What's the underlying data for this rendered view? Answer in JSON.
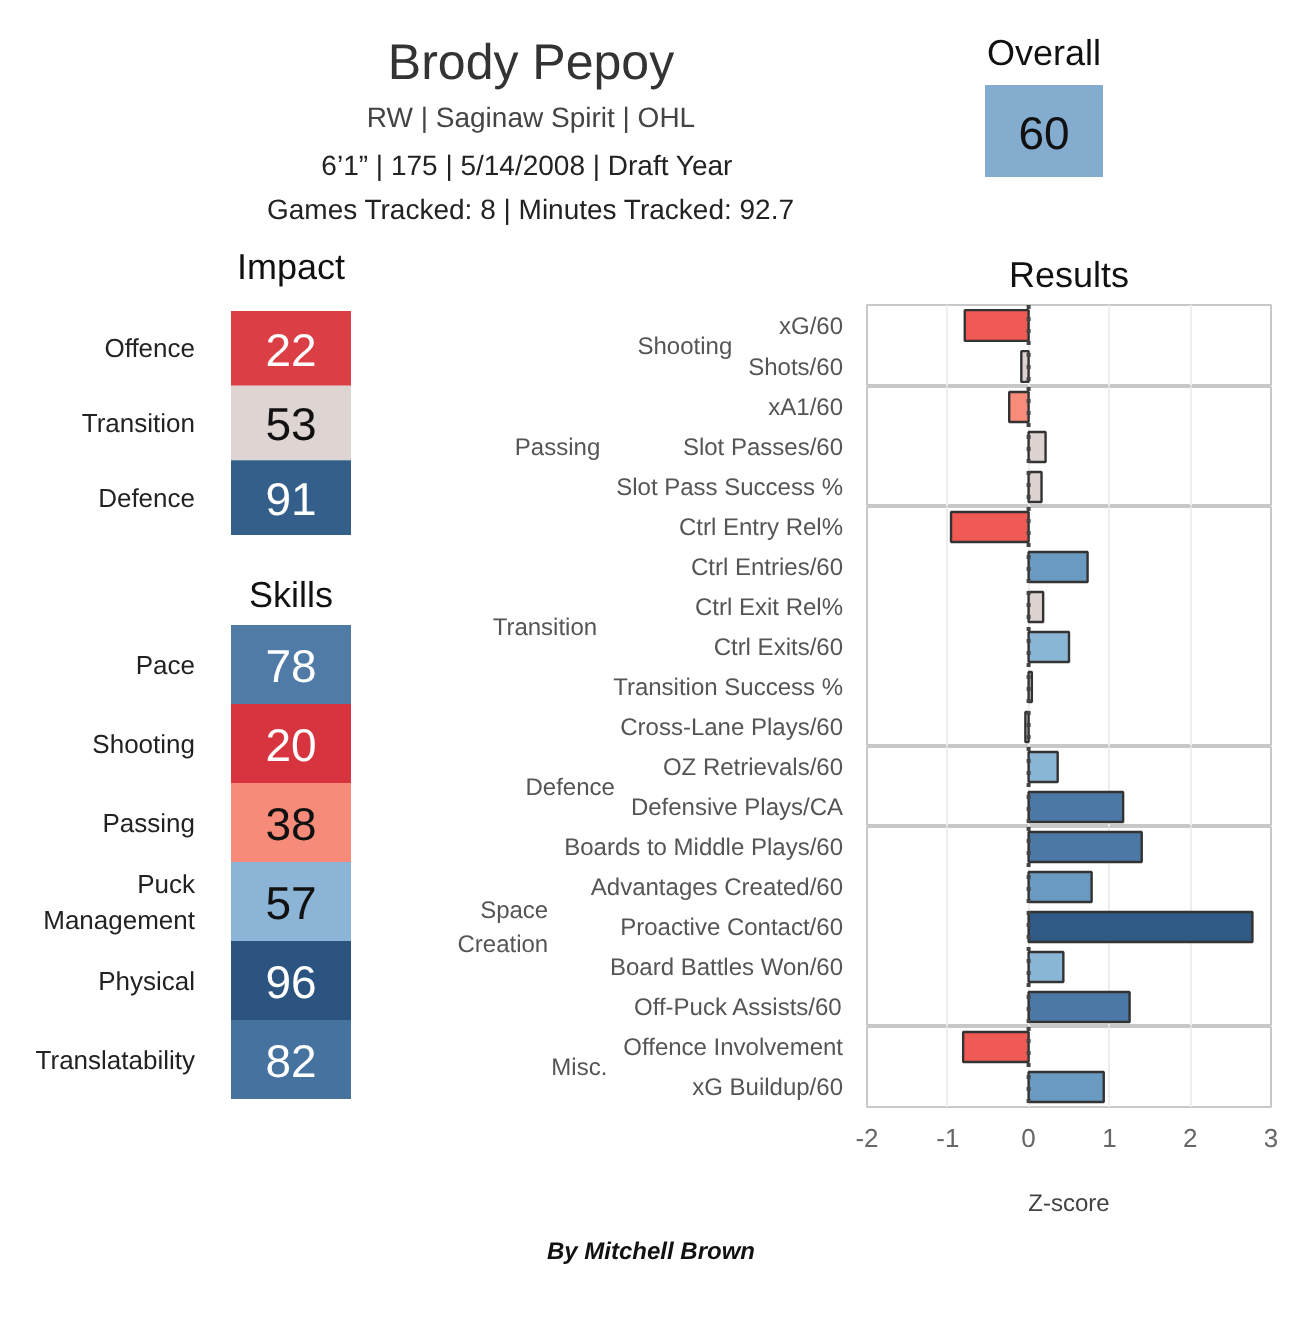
{
  "chart_data": [
    {
      "type": "other",
      "title": "Brody Pepoy",
      "subtitle": "RW | Saginaw Spirit | OHL",
      "annotations": [
        "6’1” | 175 | 5/14/2008 |  Draft Year",
        "Games Tracked: 8 | Minutes Tracked: 92.7"
      ],
      "categories": [
        "Overall"
      ],
      "values": [
        60
      ],
      "data_labels": true
    },
    {
      "type": "heatmap",
      "categories": [
        "Impact"
      ],
      "y_categories": [
        "Offence",
        "Transition",
        "Defence"
      ],
      "cells": [
        [
          22
        ],
        [
          53
        ],
        [
          91
        ]
      ],
      "data_labels": true
    },
    {
      "type": "heatmap",
      "title": "Skills",
      "categories": [
        null
      ],
      "y_categories": [
        "Pace",
        "Shooting",
        "Passing",
        "Puck Management",
        "Physical",
        "Translatability"
      ],
      "cells": [
        [
          78
        ],
        [
          20
        ],
        [
          38
        ],
        [
          57
        ],
        [
          96
        ],
        [
          82
        ]
      ],
      "data_labels": true
    },
    {
      "type": "bar",
      "orientation": "horizontal",
      "title": "Results",
      "ylabel": "Shooting",
      "categories": [
        "xG/60",
        "Shots/60"
      ],
      "values": [
        -0.79,
        -0.09
      ],
      "colors": [
        "#f05a55",
        "#ddd3d0"
      ],
      "xlim": [
        -2,
        3
      ],
      "xticks": [
        -2,
        -1,
        0,
        1,
        2,
        3
      ],
      "grid": "x",
      "tick_labels": "y",
      "ref_lines": [
        {
          "axis": "x",
          "value": 0,
          "line_style": "dotted",
          "color": "#444444"
        }
      ]
    },
    {
      "type": "bar",
      "orientation": "horizontal",
      "ylabel": "Passing",
      "categories": [
        "xA1/60",
        "Slot Passes/60",
        "Slot Pass Success %"
      ],
      "values": [
        -0.24,
        0.21,
        0.16
      ],
      "colors": [
        "#f98b7b",
        "#ddd3d0",
        "#ddd3d0"
      ],
      "xlim": [
        -2,
        3
      ],
      "xticks": [
        -2,
        -1,
        0,
        1,
        2,
        3
      ],
      "grid": "x",
      "tick_labels": "y",
      "ref_lines": [
        {
          "axis": "x",
          "value": 0,
          "line_style": "dotted",
          "color": "#444444"
        }
      ]
    },
    {
      "type": "bar",
      "orientation": "horizontal",
      "ylabel": "Transition",
      "categories": [
        "Ctrl Entry Rel%",
        "Ctrl Entries/60",
        "Ctrl Exit Rel%",
        "Ctrl Exits/60",
        "Transition Success %",
        "Cross-Lane Plays/60"
      ],
      "values": [
        -0.96,
        0.73,
        0.18,
        0.5,
        0.04,
        -0.04
      ],
      "colors": [
        "#f05a55",
        "#6a9ac0",
        "#ddd3d0",
        "#8ab6d6",
        "#ddd3d0",
        "#ddd3d0"
      ],
      "xlim": [
        -2,
        3
      ],
      "xticks": [
        -2,
        -1,
        0,
        1,
        2,
        3
      ],
      "grid": "x",
      "tick_labels": "y",
      "ref_lines": [
        {
          "axis": "x",
          "value": 0,
          "line_style": "dotted",
          "color": "#444444"
        }
      ]
    },
    {
      "type": "bar",
      "orientation": "horizontal",
      "ylabel": "Defence",
      "categories": [
        "OZ Retrievals/60",
        "Defensive Plays/CA"
      ],
      "values": [
        0.36,
        1.17
      ],
      "colors": [
        "#8ab6d6",
        "#4b78a5"
      ],
      "xlim": [
        -2,
        3
      ],
      "xticks": [
        -2,
        -1,
        0,
        1,
        2,
        3
      ],
      "grid": "x",
      "tick_labels": "y",
      "ref_lines": [
        {
          "axis": "x",
          "value": 0,
          "line_style": "dotted",
          "color": "#444444"
        }
      ]
    },
    {
      "type": "bar",
      "orientation": "horizontal",
      "ylabel": "Space Creation",
      "categories": [
        "Boards to Middle Plays/60",
        "Advantages Created/60",
        "Proactive Contact/60",
        "Board Battles Won/60",
        "Off-Puck Assists/60"
      ],
      "values": [
        1.4,
        0.78,
        2.77,
        0.43,
        1.25
      ],
      "colors": [
        "#4b78a5",
        "#6a9ac0",
        "#2f5a85",
        "#8ab6d6",
        "#4b78a5"
      ],
      "xlim": [
        -2,
        3
      ],
      "xticks": [
        -2,
        -1,
        0,
        1,
        2,
        3
      ],
      "grid": "x",
      "tick_labels": "y",
      "ref_lines": [
        {
          "axis": "x",
          "value": 0,
          "line_style": "dotted",
          "color": "#444444"
        }
      ]
    },
    {
      "type": "bar",
      "orientation": "horizontal",
      "ylabel": "Misc.",
      "xlabel": "Z-score",
      "categories": [
        "Offence Involvement",
        "xG Buildup/60"
      ],
      "values": [
        -0.81,
        0.93
      ],
      "colors": [
        "#f05a55",
        "#6a9ac0"
      ],
      "xlim": [
        -2,
        3
      ],
      "xticks": [
        -2,
        -1,
        0,
        1,
        2,
        3
      ],
      "grid": "x",
      "ref_lines": [
        {
          "axis": "x",
          "value": 0,
          "line_style": "dotted",
          "color": "#444444"
        }
      ],
      "annotations": [
        "By Mitchell Brown"
      ]
    }
  ]
}
